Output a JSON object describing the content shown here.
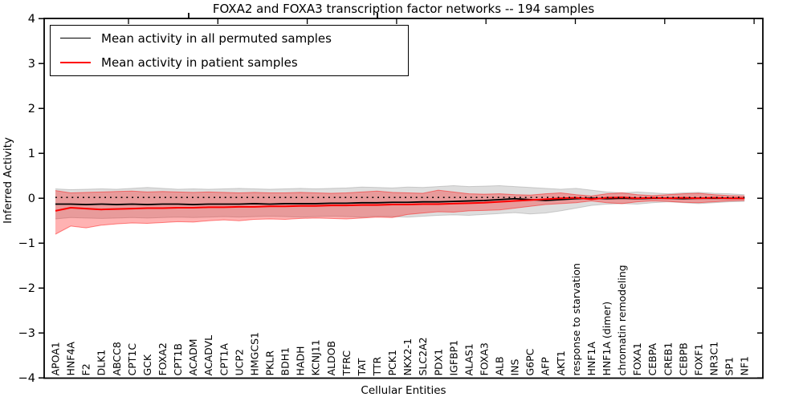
{
  "chart_data": {
    "type": "line",
    "title": "FOXA2 and FOXA3 transcription factor networks -- 194 samples",
    "xlabel": "Cellular Entities",
    "ylabel": "Inferred Activity",
    "ylim": [
      -4,
      4
    ],
    "yticks": [
      4,
      3,
      2,
      1,
      0,
      -1,
      -2,
      -3,
      -4
    ],
    "grid": false,
    "legend_position": "upper left",
    "categories": [
      "APOA1",
      "HNF4A",
      "F2",
      "DLK1",
      "ABCC8",
      "CPT1C",
      "GCK",
      "FOXA2",
      "CPT1B",
      "ACADM",
      "ACADVL",
      "CPT1A",
      "UCP2",
      "HMGCS1",
      "PKLR",
      "BDH1",
      "HADH",
      "KCNJ11",
      "ALDOB",
      "TFRC",
      "TAT",
      "TTR",
      "PCK1",
      "NKX2-1",
      "SLC2A2",
      "PDX1",
      "IGFBP1",
      "ALAS1",
      "FOXA3",
      "ALB",
      "INS",
      "G6PC",
      "AFP",
      "AKT1",
      "response to starvation",
      "HNF1A",
      "HNF1A (dimer)",
      "chromatin remodeling",
      "FOXA1",
      "CEBPA",
      "CREB1",
      "CEBPB",
      "FOXF1",
      "NR3C1",
      "SP1",
      "NF1"
    ],
    "series": [
      {
        "name": "Mean activity in all permuted samples",
        "color": "#000000",
        "style": "solid",
        "values": [
          -0.13,
          -0.13,
          -0.14,
          -0.13,
          -0.14,
          -0.13,
          -0.14,
          -0.13,
          -0.13,
          -0.14,
          -0.13,
          -0.13,
          -0.13,
          -0.12,
          -0.13,
          -0.12,
          -0.12,
          -0.12,
          -0.11,
          -0.11,
          -0.1,
          -0.1,
          -0.09,
          -0.09,
          -0.08,
          -0.08,
          -0.07,
          -0.06,
          -0.05,
          -0.03,
          -0.01,
          -0.03,
          -0.05,
          -0.03,
          -0.01,
          0.0,
          -0.01,
          0.0,
          -0.01,
          0.0,
          0.0,
          -0.01,
          0.0,
          0.0,
          0.0,
          0.0
        ]
      },
      {
        "name": "Mean activity in patient samples",
        "color": "#ff0000",
        "style": "solid",
        "values": [
          -0.28,
          -0.21,
          -0.23,
          -0.25,
          -0.24,
          -0.23,
          -0.22,
          -0.22,
          -0.21,
          -0.21,
          -0.2,
          -0.2,
          -0.19,
          -0.19,
          -0.18,
          -0.18,
          -0.17,
          -0.17,
          -0.16,
          -0.16,
          -0.15,
          -0.15,
          -0.14,
          -0.14,
          -0.13,
          -0.13,
          -0.12,
          -0.11,
          -0.1,
          -0.08,
          -0.06,
          -0.04,
          -0.02,
          0.0,
          0.01,
          -0.02,
          0.01,
          0.02,
          0.0,
          0.01,
          0.0,
          0.01,
          0.0,
          0.01,
          0.0,
          0.0
        ]
      }
    ],
    "bands": [
      {
        "name": "permuted-band",
        "color": "#999999",
        "fill_opacity": 0.32,
        "upper": [
          0.21,
          0.19,
          0.2,
          0.21,
          0.2,
          0.22,
          0.24,
          0.22,
          0.2,
          0.21,
          0.2,
          0.21,
          0.22,
          0.21,
          0.2,
          0.21,
          0.22,
          0.21,
          0.22,
          0.23,
          0.25,
          0.24,
          0.23,
          0.25,
          0.24,
          0.26,
          0.28,
          0.26,
          0.27,
          0.28,
          0.26,
          0.24,
          0.22,
          0.2,
          0.22,
          0.18,
          0.14,
          0.12,
          0.14,
          0.12,
          0.1,
          0.12,
          0.13,
          0.11,
          0.1,
          0.08
        ],
        "lower": [
          -0.46,
          -0.43,
          -0.44,
          -0.45,
          -0.44,
          -0.43,
          -0.44,
          -0.43,
          -0.42,
          -0.43,
          -0.42,
          -0.41,
          -0.42,
          -0.41,
          -0.4,
          -0.41,
          -0.42,
          -0.41,
          -0.4,
          -0.41,
          -0.42,
          -0.4,
          -0.41,
          -0.42,
          -0.4,
          -0.38,
          -0.37,
          -0.38,
          -0.36,
          -0.34,
          -0.32,
          -0.35,
          -0.33,
          -0.28,
          -0.22,
          -0.16,
          -0.13,
          -0.12,
          -0.13,
          -0.1,
          -0.08,
          -0.1,
          -0.12,
          -0.1,
          -0.08,
          -0.07
        ]
      },
      {
        "name": "patient-band",
        "color": "#ff0000",
        "fill_opacity": 0.3,
        "upper": [
          0.17,
          0.12,
          0.13,
          0.14,
          0.15,
          0.16,
          0.14,
          0.15,
          0.14,
          0.13,
          0.14,
          0.13,
          0.12,
          0.13,
          0.12,
          0.12,
          0.13,
          0.12,
          0.11,
          0.12,
          0.14,
          0.16,
          0.13,
          0.12,
          0.11,
          0.18,
          0.14,
          0.1,
          0.09,
          0.1,
          0.08,
          0.07,
          0.1,
          0.12,
          0.08,
          0.05,
          0.1,
          0.12,
          0.08,
          0.06,
          0.08,
          0.1,
          0.11,
          0.08,
          0.06,
          0.05
        ],
        "lower": [
          -0.8,
          -0.62,
          -0.66,
          -0.6,
          -0.57,
          -0.55,
          -0.56,
          -0.54,
          -0.52,
          -0.53,
          -0.5,
          -0.48,
          -0.5,
          -0.47,
          -0.46,
          -0.47,
          -0.45,
          -0.44,
          -0.45,
          -0.46,
          -0.44,
          -0.42,
          -0.43,
          -0.36,
          -0.33,
          -0.3,
          -0.31,
          -0.28,
          -0.27,
          -0.26,
          -0.22,
          -0.18,
          -0.14,
          -0.12,
          -0.1,
          -0.06,
          -0.1,
          -0.12,
          -0.08,
          -0.06,
          -0.07,
          -0.09,
          -0.1,
          -0.08,
          -0.06,
          -0.05
        ]
      }
    ],
    "reference_line": {
      "y": 0,
      "style": "dotted",
      "color": "#000000"
    }
  }
}
